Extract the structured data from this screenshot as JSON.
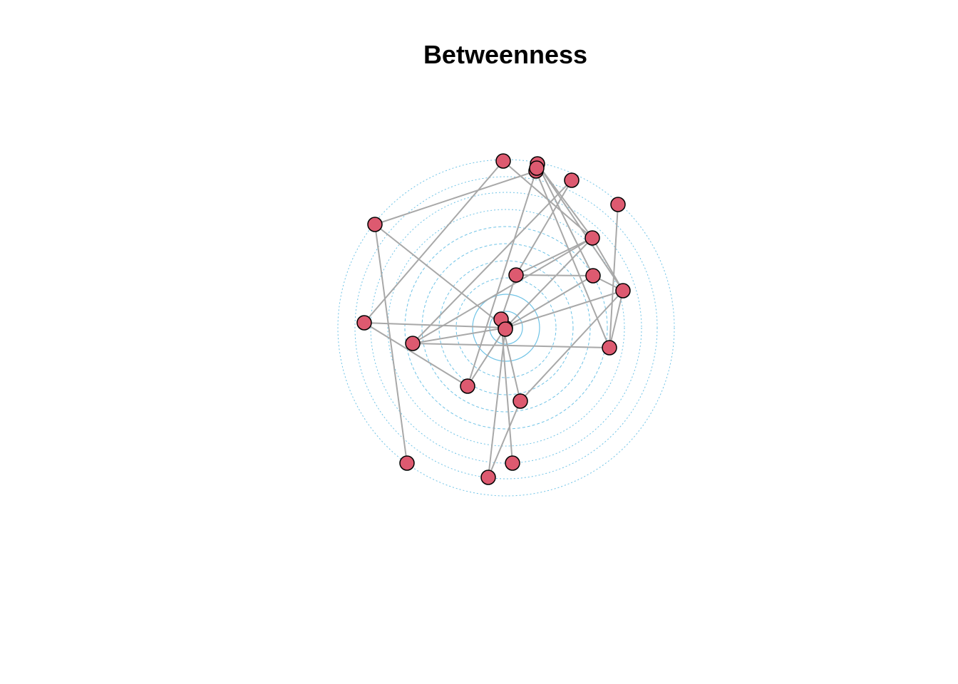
{
  "title": "Betweenness",
  "colors": {
    "ring": "#6fc3e6",
    "edge": "#a8a8a8",
    "node_fill": "#dd5a70",
    "node_stroke": "#000000",
    "background": "#ffffff"
  },
  "layout_style": "concentric target rings (radial layout by betweenness)",
  "graph": {
    "node_count": 22,
    "ring_count": 11,
    "nodes": [
      {
        "id": 1
      },
      {
        "id": 2
      },
      {
        "id": 3
      },
      {
        "id": 4
      },
      {
        "id": 5
      },
      {
        "id": 6
      },
      {
        "id": 7
      },
      {
        "id": 8
      },
      {
        "id": 9
      },
      {
        "id": 10
      },
      {
        "id": 11
      },
      {
        "id": 12
      },
      {
        "id": 13
      },
      {
        "id": 14
      },
      {
        "id": 15
      },
      {
        "id": 16
      },
      {
        "id": 17
      },
      {
        "id": 18
      },
      {
        "id": 19
      },
      {
        "id": 20
      },
      {
        "id": 21
      },
      {
        "id": 22
      }
    ],
    "edges": [
      [
        1,
        2
      ],
      [
        1,
        8
      ],
      [
        1,
        13
      ],
      [
        1,
        14
      ],
      [
        1,
        11
      ],
      [
        1,
        10
      ],
      [
        1,
        20
      ],
      [
        1,
        21
      ],
      [
        1,
        16
      ],
      [
        2,
        9
      ],
      [
        2,
        17
      ],
      [
        2,
        19
      ],
      [
        3,
        13
      ],
      [
        3,
        8
      ],
      [
        4,
        10
      ],
      [
        4,
        11
      ],
      [
        5,
        12
      ],
      [
        5,
        16
      ],
      [
        6,
        9
      ],
      [
        7,
        15
      ],
      [
        8,
        9
      ],
      [
        8,
        14
      ],
      [
        10,
        11
      ],
      [
        12,
        18
      ],
      [
        14,
        15
      ],
      [
        17,
        20
      ],
      [
        13,
        16
      ]
    ]
  }
}
